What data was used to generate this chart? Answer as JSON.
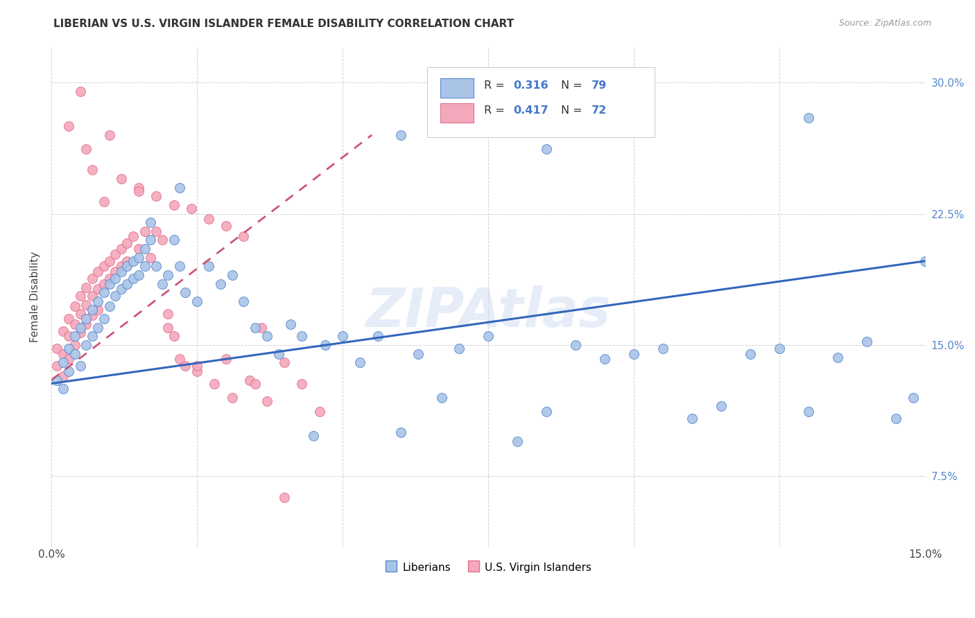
{
  "title": "LIBERIAN VS U.S. VIRGIN ISLANDER FEMALE DISABILITY CORRELATION CHART",
  "source": "Source: ZipAtlas.com",
  "ylabel": "Female Disability",
  "y_ticks": [
    "7.5%",
    "15.0%",
    "22.5%",
    "30.0%"
  ],
  "y_tick_vals": [
    0.075,
    0.15,
    0.225,
    0.3
  ],
  "x_lim": [
    0.0,
    0.15
  ],
  "y_lim": [
    0.035,
    0.32
  ],
  "blue_color": "#aac4e8",
  "pink_color": "#f4a8bb",
  "blue_edge_color": "#5588cc",
  "pink_edge_color": "#e07090",
  "blue_line_color": "#3366bb",
  "pink_line_color": "#cc5577",
  "watermark": "ZIPAtlas",
  "blue_line_x": [
    0.0,
    0.15
  ],
  "blue_line_y": [
    0.128,
    0.198
  ],
  "pink_line_x": [
    0.0,
    0.055
  ],
  "pink_line_y": [
    0.13,
    0.27
  ],
  "blue_points_x": [
    0.001,
    0.002,
    0.002,
    0.003,
    0.003,
    0.004,
    0.004,
    0.005,
    0.005,
    0.006,
    0.006,
    0.007,
    0.007,
    0.008,
    0.008,
    0.009,
    0.009,
    0.01,
    0.01,
    0.011,
    0.011,
    0.012,
    0.012,
    0.013,
    0.013,
    0.014,
    0.014,
    0.015,
    0.015,
    0.016,
    0.016,
    0.017,
    0.018,
    0.019,
    0.02,
    0.021,
    0.022,
    0.023,
    0.025,
    0.027,
    0.029,
    0.031,
    0.033,
    0.035,
    0.037,
    0.039,
    0.041,
    0.043,
    0.045,
    0.047,
    0.05,
    0.053,
    0.056,
    0.06,
    0.063,
    0.067,
    0.07,
    0.075,
    0.08,
    0.085,
    0.09,
    0.095,
    0.1,
    0.105,
    0.11,
    0.115,
    0.12,
    0.125,
    0.13,
    0.135,
    0.14,
    0.145,
    0.148,
    0.15,
    0.017,
    0.022,
    0.06,
    0.085,
    0.13
  ],
  "blue_points_y": [
    0.13,
    0.14,
    0.125,
    0.148,
    0.135,
    0.155,
    0.145,
    0.16,
    0.138,
    0.165,
    0.15,
    0.17,
    0.155,
    0.175,
    0.16,
    0.18,
    0.165,
    0.185,
    0.172,
    0.188,
    0.178,
    0.192,
    0.182,
    0.195,
    0.185,
    0.198,
    0.188,
    0.2,
    0.19,
    0.205,
    0.195,
    0.21,
    0.195,
    0.185,
    0.19,
    0.21,
    0.195,
    0.18,
    0.175,
    0.195,
    0.185,
    0.19,
    0.175,
    0.16,
    0.155,
    0.145,
    0.162,
    0.155,
    0.098,
    0.15,
    0.155,
    0.14,
    0.155,
    0.1,
    0.145,
    0.12,
    0.148,
    0.155,
    0.095,
    0.112,
    0.15,
    0.142,
    0.145,
    0.148,
    0.108,
    0.115,
    0.145,
    0.148,
    0.112,
    0.143,
    0.152,
    0.108,
    0.12,
    0.198,
    0.22,
    0.24,
    0.27,
    0.262,
    0.28
  ],
  "pink_points_x": [
    0.001,
    0.001,
    0.002,
    0.002,
    0.002,
    0.003,
    0.003,
    0.003,
    0.004,
    0.004,
    0.004,
    0.005,
    0.005,
    0.005,
    0.006,
    0.006,
    0.006,
    0.007,
    0.007,
    0.007,
    0.008,
    0.008,
    0.008,
    0.009,
    0.009,
    0.01,
    0.01,
    0.011,
    0.011,
    0.012,
    0.012,
    0.013,
    0.013,
    0.014,
    0.015,
    0.016,
    0.017,
    0.018,
    0.019,
    0.02,
    0.021,
    0.022,
    0.023,
    0.025,
    0.028,
    0.031,
    0.034,
    0.037,
    0.04,
    0.043,
    0.046,
    0.005,
    0.007,
    0.01,
    0.015,
    0.02,
    0.025,
    0.03,
    0.035,
    0.003,
    0.006,
    0.009,
    0.012,
    0.015,
    0.018,
    0.021,
    0.024,
    0.027,
    0.03,
    0.033,
    0.036,
    0.04
  ],
  "pink_points_y": [
    0.148,
    0.138,
    0.158,
    0.145,
    0.132,
    0.165,
    0.155,
    0.142,
    0.172,
    0.162,
    0.15,
    0.178,
    0.168,
    0.157,
    0.183,
    0.173,
    0.162,
    0.188,
    0.178,
    0.167,
    0.192,
    0.182,
    0.17,
    0.195,
    0.185,
    0.198,
    0.188,
    0.202,
    0.192,
    0.205,
    0.195,
    0.208,
    0.198,
    0.212,
    0.205,
    0.215,
    0.2,
    0.215,
    0.21,
    0.168,
    0.155,
    0.142,
    0.138,
    0.135,
    0.128,
    0.12,
    0.13,
    0.118,
    0.14,
    0.128,
    0.112,
    0.295,
    0.25,
    0.27,
    0.24,
    0.16,
    0.138,
    0.142,
    0.128,
    0.275,
    0.262,
    0.232,
    0.245,
    0.238,
    0.235,
    0.23,
    0.228,
    0.222,
    0.218,
    0.212,
    0.16,
    0.063
  ]
}
